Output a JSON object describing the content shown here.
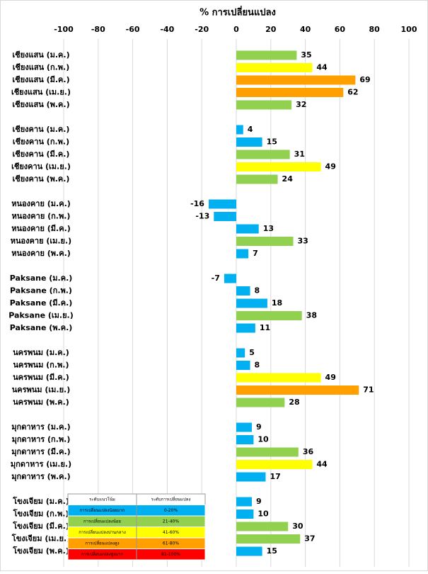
{
  "chart_data": {
    "type": "bar",
    "orientation": "horizontal",
    "title": "% การเปลี่ยนแปลง",
    "categories": [
      "เชียงแสน (ม.ค.)",
      "เชียงแสน (ก.พ.)",
      "เชียงแสน (มี.ค.)",
      "เชียงแสน (เม.ย.)",
      "เชียงแสน (พ.ค.)",
      "เชียงคาน (ม.ค.)",
      "เชียงคาน (ก.พ.)",
      "เชียงคาน (มี.ค.)",
      "เชียงคาน (เม.ย.)",
      "เชียงคาน (พ.ค.)",
      "หนองคาย (ม.ค.)",
      "หนองคาย (ก.พ.)",
      "หนองคาย (มี.ค.)",
      "หนองคาย (เม.ย.)",
      "หนองคาย (พ.ค.)",
      "Paksane (ม.ค.)",
      "Paksane (ก.พ.)",
      "Paksane (มี.ค.)",
      "Paksane (เม.ย.)",
      "Paksane (พ.ค.)",
      "นครพนม (ม.ค.)",
      "นครพนม (ก.พ.)",
      "นครพนม (มี.ค.)",
      "นครพนม (เม.ย.)",
      "นครพนม (พ.ค.)",
      "มุกดาหาร (ม.ค.)",
      "มุกดาหาร (ก.พ.)",
      "มุกดาหาร (มี.ค.)",
      "มุกดาหาร (เม.ย.)",
      "มุกดาหาร (พ.ค.)",
      "โขงเจียม (ม.ค.)",
      "โขงเจียม (ก.พ.)",
      "โขงเจียม (มี.ค.)",
      "โขงเจียม (เม.ย.)",
      "โขงเจียม (พ.ค.)"
    ],
    "values": [
      35,
      44,
      69,
      62,
      32,
      4,
      15,
      31,
      49,
      24,
      -16,
      -13,
      13,
      33,
      7,
      -7,
      8,
      18,
      38,
      11,
      5,
      8,
      49,
      71,
      28,
      9,
      10,
      36,
      44,
      17,
      9,
      10,
      30,
      37,
      15
    ],
    "colors": [
      "#92d050",
      "#ffff00",
      "#ffa000",
      "#ffa000",
      "#92d050",
      "#00b0f0",
      "#00b0f0",
      "#92d050",
      "#ffff00",
      "#92d050",
      "#00b0f0",
      "#00b0f0",
      "#00b0f0",
      "#92d050",
      "#00b0f0",
      "#00b0f0",
      "#00b0f0",
      "#00b0f0",
      "#92d050",
      "#00b0f0",
      "#00b0f0",
      "#00b0f0",
      "#ffff00",
      "#ffa000",
      "#92d050",
      "#00b0f0",
      "#00b0f0",
      "#92d050",
      "#ffff00",
      "#00b0f0",
      "#00b0f0",
      "#00b0f0",
      "#92d050",
      "#92d050",
      "#00b0f0"
    ],
    "xlim": [
      -100,
      100
    ],
    "xticks": [
      -100,
      -80,
      -60,
      -40,
      -20,
      0,
      20,
      40,
      60,
      80,
      100
    ],
    "grid": true,
    "legend": {
      "headers": [
        "ระดับแนวโน้ม",
        "ระดับการเปลี่ยนแปลง"
      ],
      "rows": [
        {
          "label": "การเปลี่ยนแปลงน้อยมาก",
          "range": "0-20%",
          "color": "#00b0f0"
        },
        {
          "label": "การเปลี่ยนแปลงน้อย",
          "range": "21-40%",
          "color": "#92d050"
        },
        {
          "label": "การเปลี่ยนแปลงปานกลาง",
          "range": "41-60%",
          "color": "#ffff00"
        },
        {
          "label": "การเปลี่ยนแปลงสูง",
          "range": "61-80%",
          "color": "#ffa000"
        },
        {
          "label": "การเปลี่ยนแปลงสูงมาก",
          "range": "81-100%",
          "color": "#ff0000"
        }
      ]
    }
  }
}
